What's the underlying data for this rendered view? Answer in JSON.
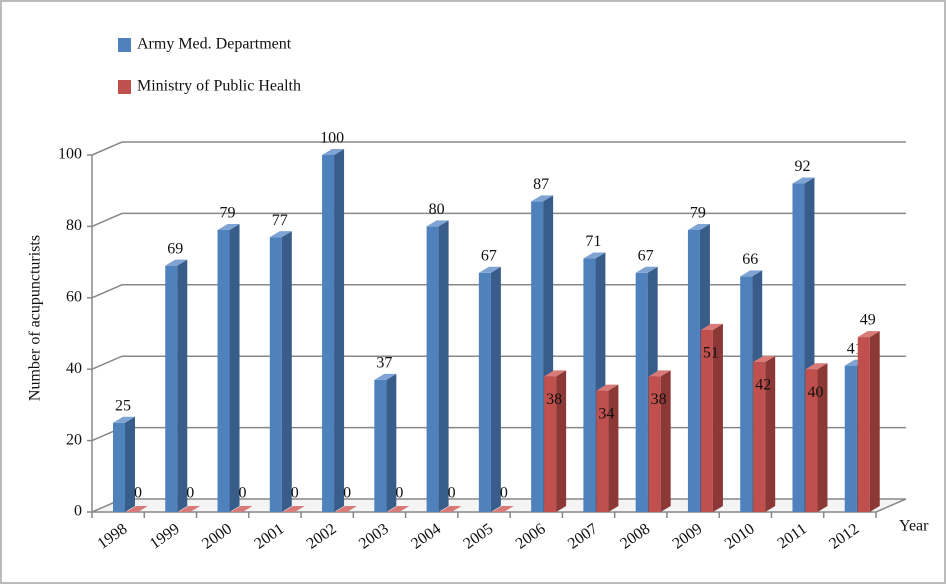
{
  "chart_data": {
    "type": "bar3d",
    "categories": [
      "1998",
      "1999",
      "2000",
      "2001",
      "2002",
      "2003",
      "2004",
      "2005",
      "2006",
      "2007",
      "2008",
      "2009",
      "2010",
      "2011",
      "2012"
    ],
    "series": [
      {
        "name": "Army Med. Department",
        "color": "#4f81bd",
        "values": [
          25,
          69,
          79,
          77,
          100,
          37,
          80,
          67,
          87,
          71,
          67,
          79,
          66,
          92,
          41
        ]
      },
      {
        "name": "Ministry of Public Health",
        "color": "#c0504d",
        "values": [
          0,
          0,
          0,
          0,
          0,
          0,
          0,
          0,
          38,
          34,
          38,
          51,
          42,
          40,
          49
        ]
      }
    ],
    "y_label": "Number of acupuncturists",
    "x_label": "Year",
    "ylim": [
      0,
      100
    ],
    "yticks": [
      0,
      20,
      40,
      60,
      80,
      100
    ],
    "grid": true
  }
}
